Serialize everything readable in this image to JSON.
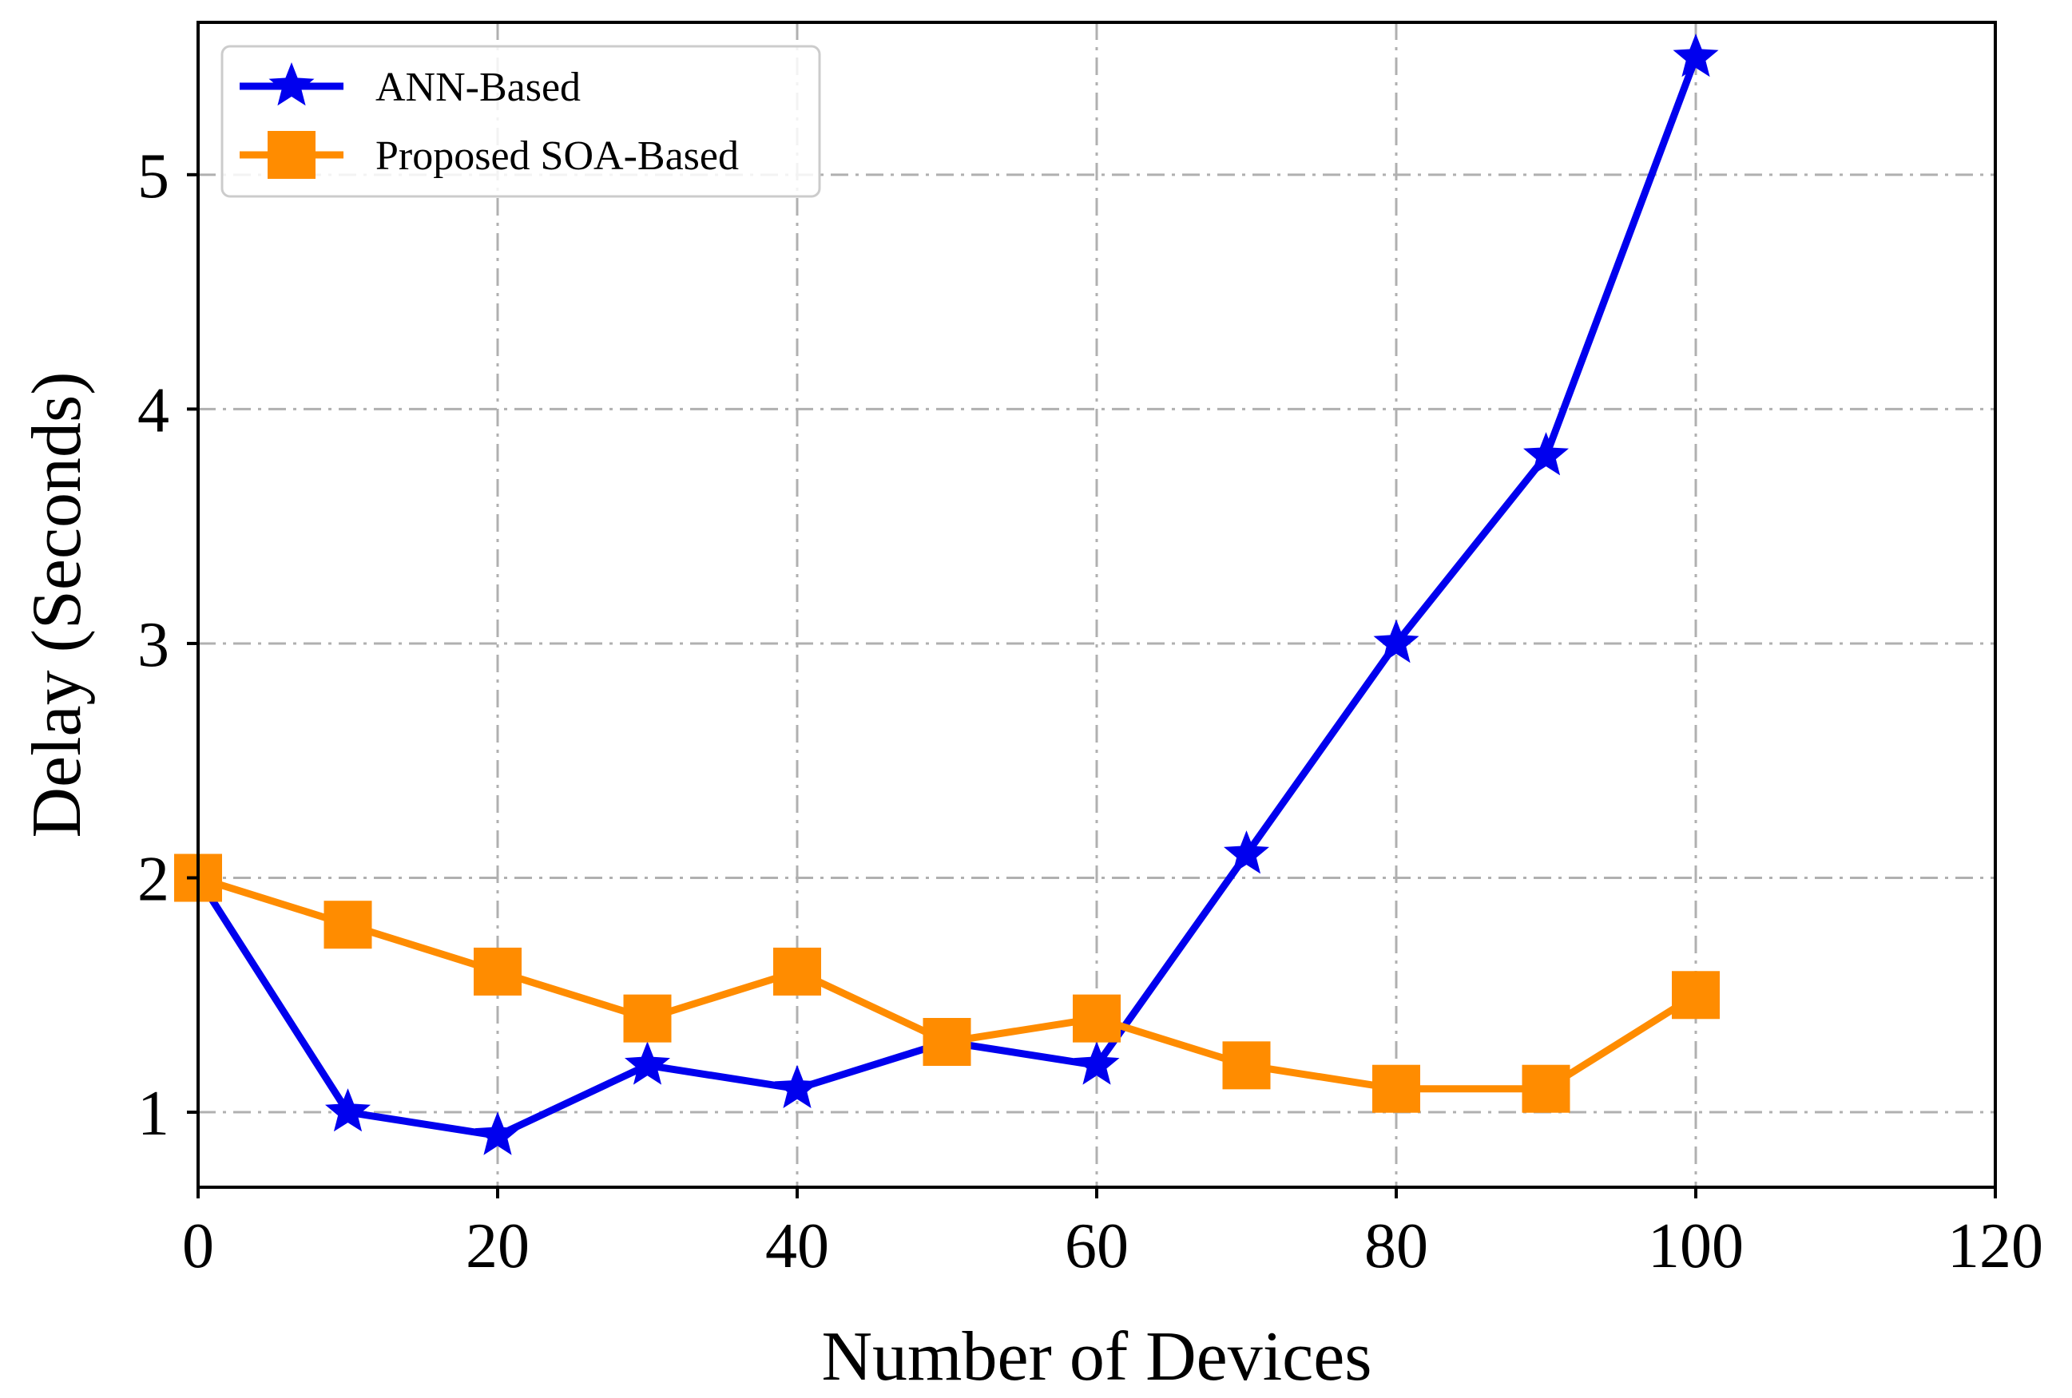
{
  "chart_data": {
    "type": "line",
    "title": "",
    "xlabel": "Number of Devices",
    "ylabel": "Delay (Seconds)",
    "xlim": [
      0,
      120
    ],
    "ylim": [
      0.68,
      5.65
    ],
    "xticks": [
      0,
      20,
      40,
      60,
      80,
      100,
      120
    ],
    "xtick_labels": [
      "0",
      "20",
      "40",
      "60",
      "80",
      "100",
      "120"
    ],
    "yticks": [
      1,
      2,
      3,
      4,
      5
    ],
    "ytick_labels": [
      "1",
      "2",
      "3",
      "4",
      "5"
    ],
    "grid": true,
    "legend_position": "top-left",
    "series": [
      {
        "name": "ANN-Based",
        "color": "#0000ee",
        "marker": "star",
        "x": [
          0,
          10,
          20,
          30,
          40,
          50,
          60,
          70,
          80,
          90,
          100
        ],
        "values": [
          2.0,
          1.0,
          0.9,
          1.2,
          1.1,
          1.3,
          1.2,
          2.1,
          3.0,
          3.8,
          5.5
        ]
      },
      {
        "name": "Proposed SOA-Based",
        "color": "#ff8c00",
        "marker": "square",
        "x": [
          0,
          10,
          20,
          30,
          40,
          50,
          60,
          70,
          80,
          90,
          100
        ],
        "values": [
          2.0,
          1.8,
          1.6,
          1.4,
          1.6,
          1.3,
          1.4,
          1.2,
          1.1,
          1.1,
          1.5
        ]
      }
    ]
  }
}
